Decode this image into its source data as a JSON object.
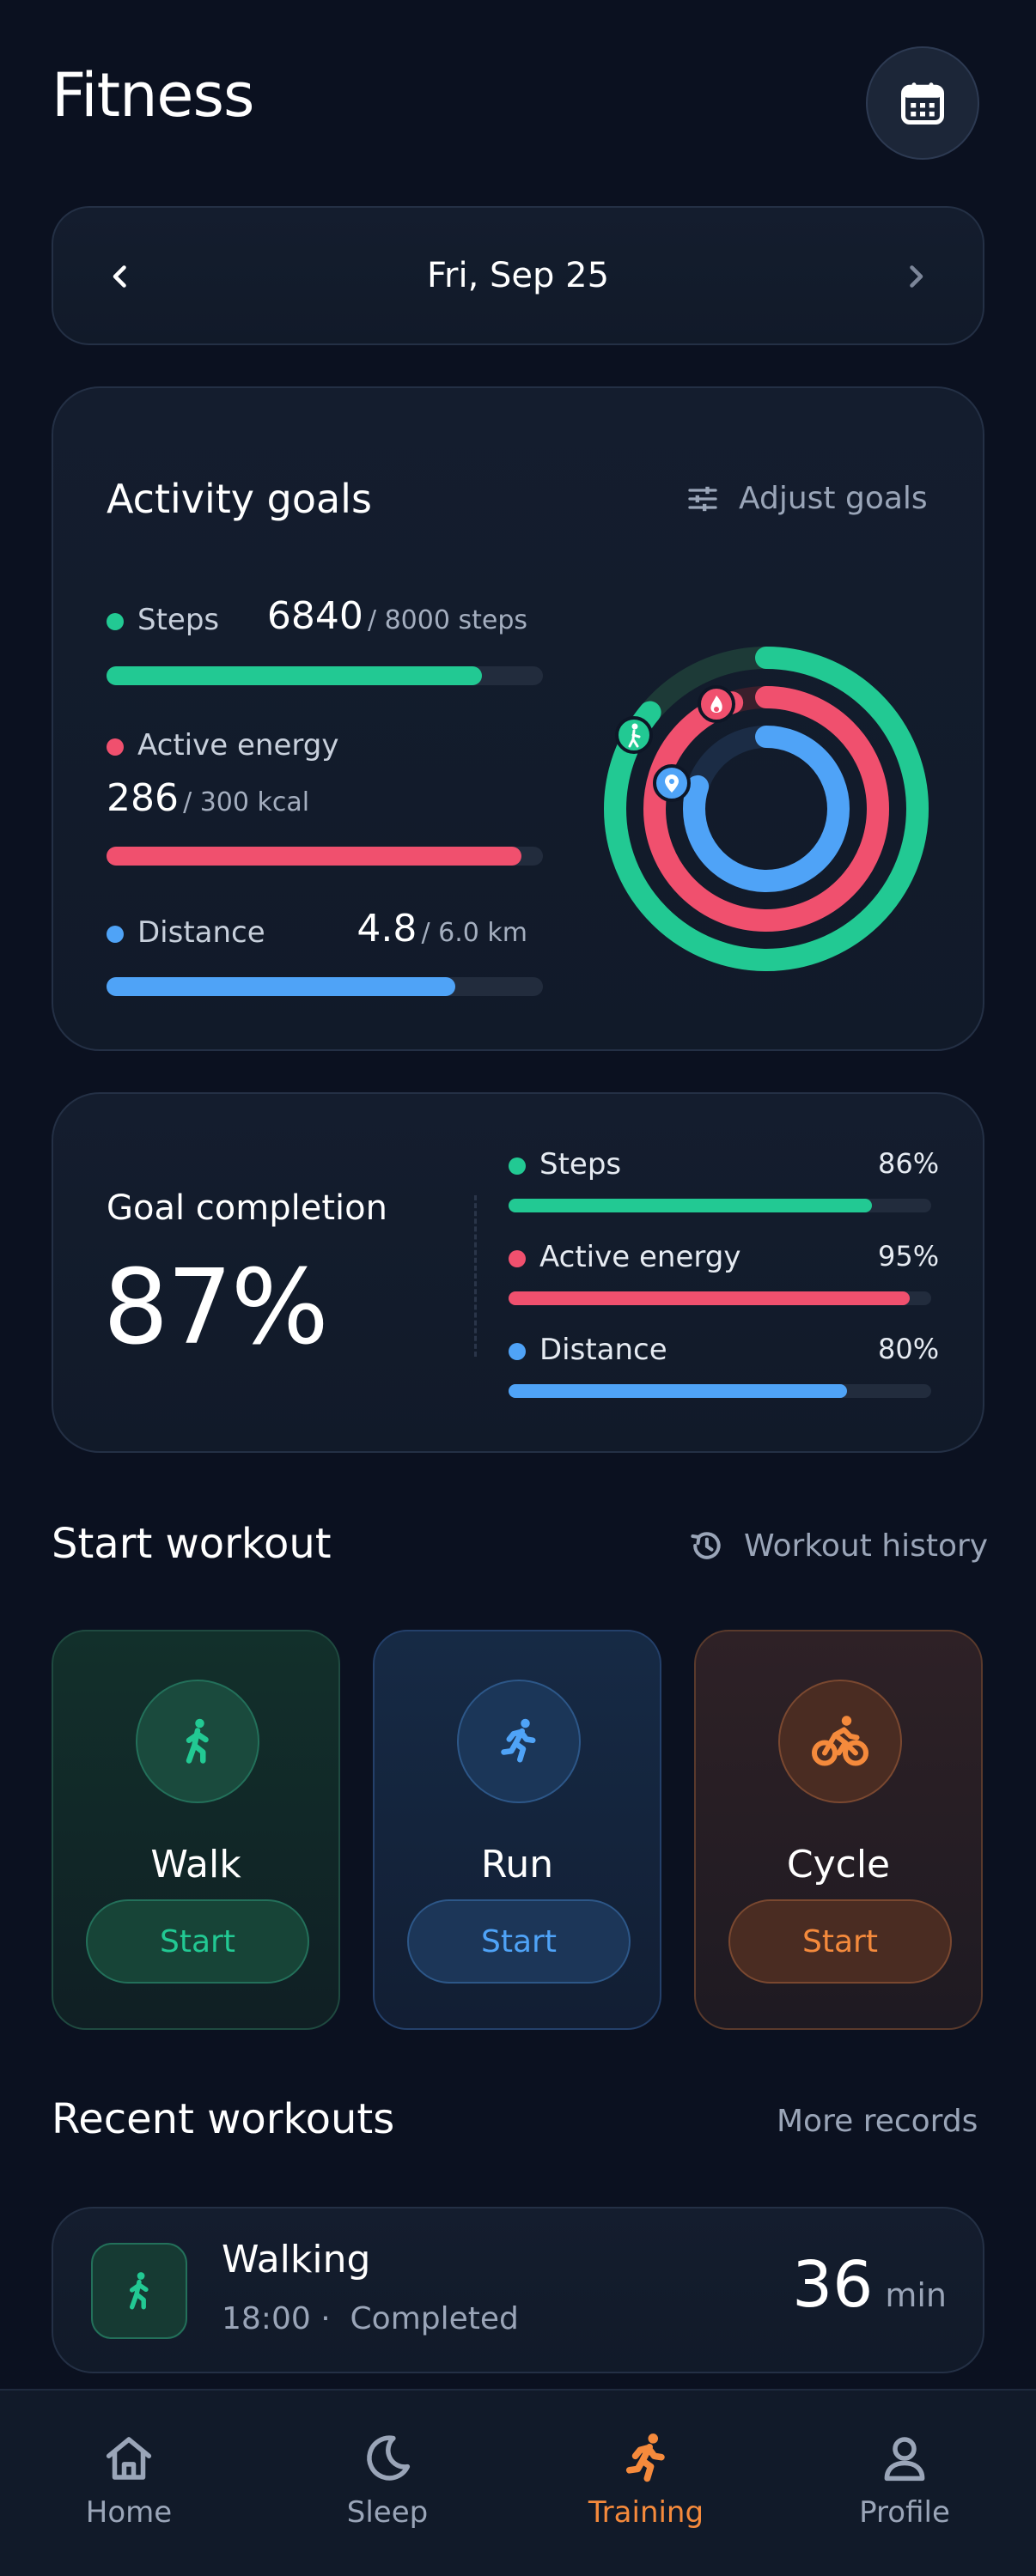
{
  "header": {
    "title": "Fitness",
    "calendar_icon": "calendar-icon"
  },
  "date_nav": {
    "date": "Fri, Sep 25",
    "prev_icon": "chevron-left-icon",
    "next_icon": "chevron-right-icon"
  },
  "activity_goals": {
    "title": "Activity goals",
    "adjust_label": "Adjust goals",
    "items": [
      {
        "label": "Steps",
        "value": "6840",
        "target": "/ 8000 steps",
        "progress": 0.86,
        "color": "#22c993"
      },
      {
        "label": "Active energy",
        "value": "286",
        "target": "/ 300 kcal",
        "progress": 0.95,
        "color": "#f0506e"
      },
      {
        "label": "Distance",
        "value": "4.8",
        "target": "/ 6.0 km",
        "progress": 0.8,
        "color": "#4fa3f7"
      }
    ]
  },
  "goal_completion": {
    "title": "Goal completion",
    "percent": "87%",
    "items": [
      {
        "label": "Steps",
        "percent": "86%",
        "progress": 0.86,
        "color": "#22c993"
      },
      {
        "label": "Active energy",
        "percent": "95%",
        "progress": 0.95,
        "color": "#f0506e"
      },
      {
        "label": "Distance",
        "percent": "80%",
        "progress": 0.8,
        "color": "#4fa3f7"
      }
    ]
  },
  "start_workout": {
    "title": "Start workout",
    "history_label": "Workout history",
    "workouts": [
      {
        "name": "Walk",
        "start_label": "Start",
        "icon": "walk-icon",
        "color": "#22c993"
      },
      {
        "name": "Run",
        "start_label": "Start",
        "icon": "run-icon",
        "color": "#4fa3f7"
      },
      {
        "name": "Cycle",
        "start_label": "Start",
        "icon": "bike-icon",
        "color": "#f58a3c"
      }
    ]
  },
  "recent_workouts": {
    "title": "Recent workouts",
    "more_label": "More records",
    "items": [
      {
        "name": "Walking",
        "time": "18:00 ·",
        "status": "Completed",
        "duration": "36",
        "unit": "min"
      }
    ]
  },
  "bottom_nav": {
    "items": [
      {
        "label": "Home",
        "icon": "home-icon",
        "active": false
      },
      {
        "label": "Sleep",
        "icon": "moon-icon",
        "active": false
      },
      {
        "label": "Training",
        "icon": "run-icon",
        "active": true
      },
      {
        "label": "Profile",
        "icon": "person-icon",
        "active": false
      }
    ],
    "active_color": "#f58a3c"
  }
}
